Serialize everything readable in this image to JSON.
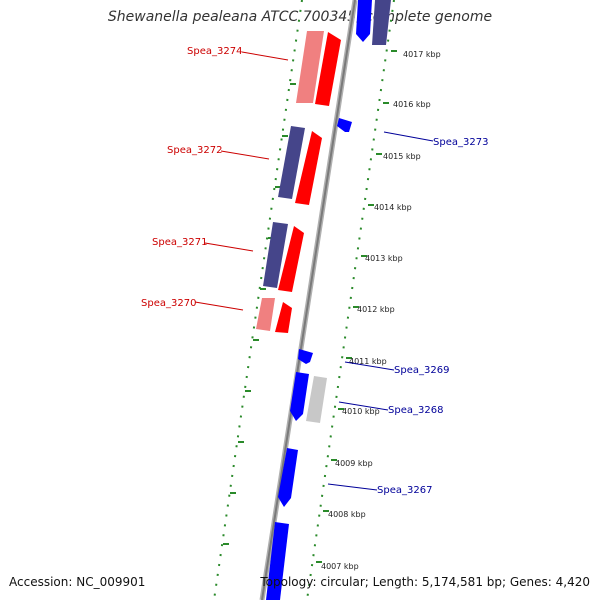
{
  "title": "Shewanella pealeana ATCC 700345, complete genome",
  "accession": "Accession: NC_009901",
  "summary": "Topology: circular; Length: 5,174,581 bp; Genes: 4,420",
  "colors": {
    "backbone": "#909090",
    "forward": "#ff0000",
    "forward_light": "#f08080",
    "reverse": "#0000ff",
    "reverse_dark": "#45458a",
    "neutral": "#c8c8c8",
    "dots": "#2a8a2a",
    "label_left": "#cc0000",
    "label_right": "#000099"
  },
  "ticks": [
    {
      "label": "4017 kbp"
    },
    {
      "label": "4016 kbp"
    },
    {
      "label": "4015 kbp"
    },
    {
      "label": "4014 kbp"
    },
    {
      "label": "4013 kbp"
    },
    {
      "label": "4012 kbp"
    },
    {
      "label": "4011 kbp"
    },
    {
      "label": "4010 kbp"
    },
    {
      "label": "4009 kbp"
    },
    {
      "label": "4008 kbp"
    },
    {
      "label": "4007 kbp"
    }
  ],
  "gene_labels": {
    "spea_3274": "Spea_3274",
    "spea_3272": "Spea_3272",
    "spea_3271": "Spea_3271",
    "spea_3270": "Spea_3270",
    "spea_3273": "Spea_3273",
    "spea_3269": "Spea_3269",
    "spea_3268": "Spea_3268",
    "spea_3267": "Spea_3267"
  }
}
